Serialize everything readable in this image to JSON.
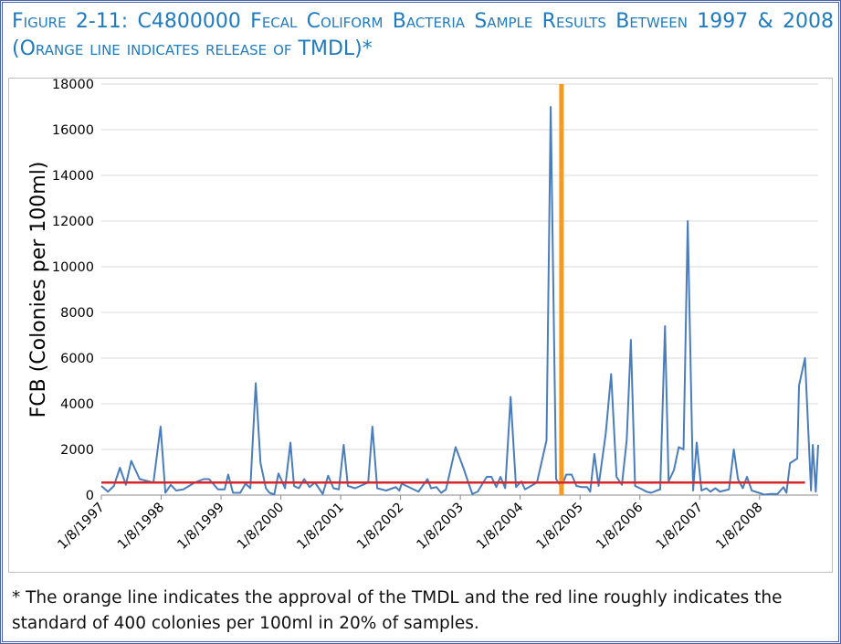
{
  "chart_data": {
    "type": "line",
    "title": "Figure 2-11: C4800000 Fecal Coliform Bacteria Sample Results Between 1997 & 2008 (Orange line indicates release of TMDL)*",
    "y_label": "FCB (Colonies per 100ml)",
    "footnote": "* The orange line indicates the approval of the TMDL and the red line roughly indicates the standard of 400 colonies per 100ml in 20% of samples.",
    "xlim": [
      1997.02,
      2009.0
    ],
    "xticks": [
      {
        "value": 1997.02,
        "label": "1/8/1997"
      },
      {
        "value": 1998.02,
        "label": "1/8/1998"
      },
      {
        "value": 1999.02,
        "label": "1/8/1999"
      },
      {
        "value": 2000.02,
        "label": "1/8/2000"
      },
      {
        "value": 2001.02,
        "label": "1/8/2001"
      },
      {
        "value": 2002.02,
        "label": "1/8/2002"
      },
      {
        "value": 2003.02,
        "label": "1/8/2003"
      },
      {
        "value": 2004.02,
        "label": "1/8/2004"
      },
      {
        "value": 2005.02,
        "label": "1/8/2005"
      },
      {
        "value": 2006.02,
        "label": "1/8/2006"
      },
      {
        "value": 2007.02,
        "label": "1/8/2007"
      },
      {
        "value": 2008.02,
        "label": "1/8/2008"
      }
    ],
    "ylim": [
      0,
      18000
    ],
    "yticks": [
      0,
      2000,
      4000,
      6000,
      8000,
      10000,
      12000,
      14000,
      16000,
      18000
    ],
    "grid": true,
    "x": [
      1997.02,
      1997.13,
      1997.23,
      1997.33,
      1997.43,
      1997.52,
      1997.66,
      1997.89,
      1998.01,
      1998.09,
      1998.18,
      1998.27,
      1998.39,
      1998.58,
      1998.73,
      1998.82,
      1998.97,
      1999.08,
      1999.14,
      1999.22,
      1999.34,
      1999.43,
      1999.51,
      1999.6,
      1999.68,
      1999.77,
      1999.83,
      1999.91,
      1999.98,
      2000.09,
      2000.18,
      2000.24,
      2000.32,
      2000.41,
      2000.5,
      2000.59,
      2000.72,
      2000.81,
      2000.9,
      2000.99,
      2001.07,
      2001.14,
      2001.26,
      2001.48,
      2001.55,
      2001.63,
      2001.78,
      2001.94,
      2002.0,
      2002.04,
      2002.2,
      2002.32,
      2002.47,
      2002.53,
      2002.62,
      2002.7,
      2002.78,
      2002.94,
      2003.07,
      2003.16,
      2003.22,
      2003.31,
      2003.46,
      2003.54,
      2003.62,
      2003.69,
      2003.77,
      2003.86,
      2003.95,
      2004.04,
      2004.1,
      2004.3,
      2004.46,
      2004.53,
      2004.62,
      2004.71,
      2004.79,
      2004.88,
      2004.96,
      2005.05,
      2005.14,
      2005.19,
      2005.26,
      2005.33,
      2005.45,
      2005.54,
      2005.63,
      2005.72,
      2005.8,
      2005.87,
      2005.94,
      2006.06,
      2006.13,
      2006.21,
      2006.3,
      2006.36,
      2006.44,
      2006.5,
      2006.59,
      2006.67,
      2006.75,
      2006.82,
      2006.91,
      2006.97,
      2007.05,
      2007.13,
      2007.2,
      2007.28,
      2007.36,
      2007.43,
      2007.51,
      2007.59,
      2007.66,
      2007.74,
      2007.81,
      2007.89,
      2008.01,
      2008.1,
      2008.2,
      2008.32,
      2008.42,
      2008.47,
      2008.53,
      2008.59,
      2008.65,
      2008.68,
      2008.78,
      2008.88,
      2008.91,
      2008.96,
      2009.0
    ],
    "series": [
      {
        "color": "#4a7ebb",
        "values": [
          400,
          150,
          400,
          1200,
          450,
          1500,
          700,
          550,
          3000,
          100,
          450,
          200,
          250,
          550,
          700,
          700,
          250,
          250,
          900,
          100,
          100,
          500,
          300,
          4900,
          1400,
          300,
          100,
          30,
          950,
          300,
          2300,
          400,
          300,
          700,
          350,
          550,
          50,
          850,
          300,
          250,
          2200,
          400,
          300,
          550,
          3000,
          300,
          200,
          350,
          200,
          500,
          300,
          150,
          700,
          300,
          350,
          100,
          250,
          2100,
          1200,
          500,
          50,
          150,
          800,
          800,
          350,
          800,
          300,
          4300,
          350,
          600,
          250,
          550,
          2400,
          17000,
          700,
          350,
          900,
          900,
          400,
          350,
          350,
          150,
          1800,
          400,
          2700,
          5300,
          800,
          450,
          2400,
          6800,
          400,
          250,
          150,
          100,
          200,
          250,
          7400,
          600,
          1100,
          2100,
          2000,
          12000,
          200,
          2300,
          200,
          300,
          150,
          300,
          150,
          200,
          250,
          2000,
          700,
          300,
          800,
          200,
          100,
          20,
          50,
          50,
          350,
          100,
          1400,
          1500,
          1600,
          4800,
          6000,
          200,
          2200,
          150,
          2200
        ]
      }
    ],
    "reference_lines": [
      {
        "x": 2004.71,
        "color": "#f59b22"
      },
      {
        "y": 550,
        "xrange": [
          1997.02,
          2008.78
        ],
        "color": "#d9262c"
      }
    ]
  }
}
